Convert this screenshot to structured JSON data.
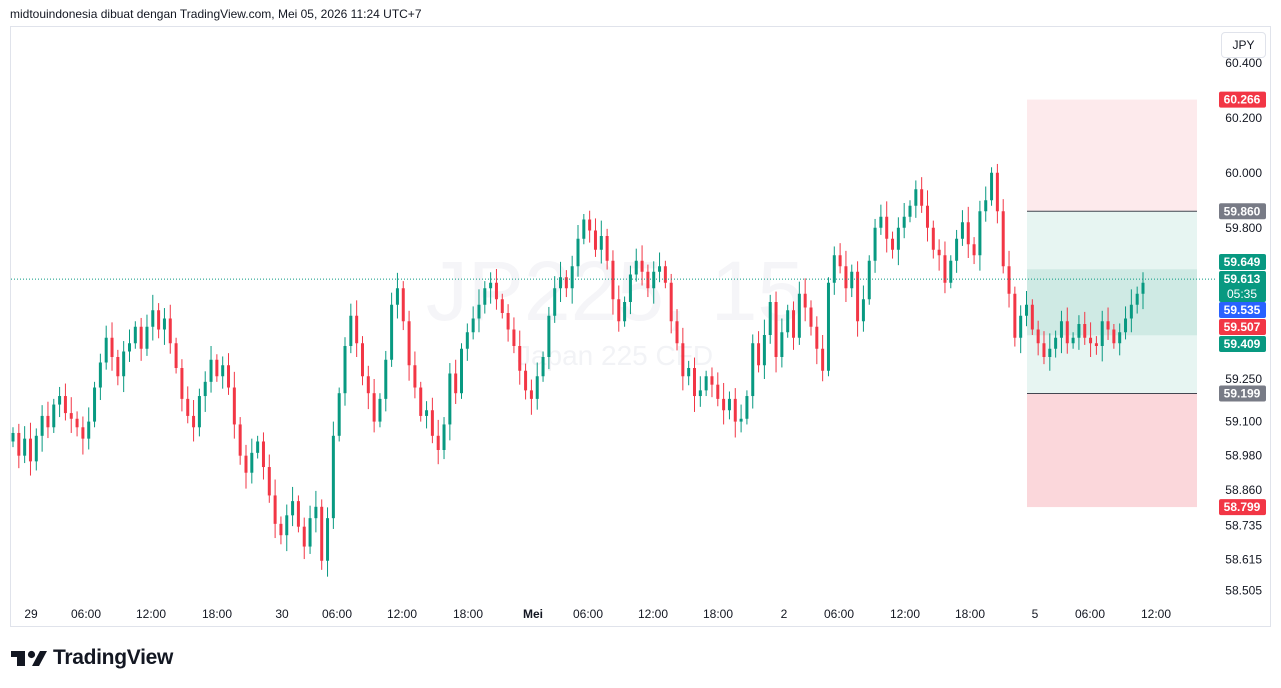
{
  "header": {
    "text": "midtouindonesia dibuat dengan TradingView.com, Mei 05, 2026 11:24 UTC+7"
  },
  "watermark": {
    "symbol": "JP225, 15",
    "name": "Japan 225 CFD"
  },
  "currency": "JPY",
  "brand": {
    "name": "TradingView",
    "icon": "tradingview-logo-icon"
  },
  "colors": {
    "up": "#089981",
    "down": "#f23645",
    "last_price": "#2962ff",
    "profit_zone": "#e6f4f1",
    "loss_zone": "#fde8ea"
  },
  "chart_data": {
    "type": "candlestick",
    "timeframe": "15",
    "x_ticks": [
      "29",
      "06:00",
      "12:00",
      "18:00",
      "30",
      "06:00",
      "12:00",
      "18:00",
      "Mei",
      "06:00",
      "12:00",
      "18:00",
      "2",
      "06:00",
      "12:00",
      "18:00",
      "5",
      "06:00",
      "12:00"
    ],
    "y_ticks": [
      "60.400",
      "60.200",
      "60.000",
      "59.800",
      "59.250",
      "59.100",
      "58.980",
      "58.860",
      "58.735",
      "58.615",
      "58.505"
    ],
    "ylim": [
      58.46,
      60.43
    ],
    "current_price": 59.613,
    "countdown": "05:35",
    "price_labels": [
      {
        "value": "60.266",
        "kind": "stop-loss"
      },
      {
        "value": "59.860",
        "kind": "target"
      },
      {
        "value": "59.649",
        "kind": "high"
      },
      {
        "value": "59.535",
        "kind": "bid"
      },
      {
        "value": "59.507",
        "kind": "low"
      },
      {
        "value": "59.409",
        "kind": "entry"
      },
      {
        "value": "59.199",
        "kind": "target"
      },
      {
        "value": "58.799",
        "kind": "stop-loss"
      }
    ],
    "series": [
      {
        "close": [
          59.06,
          58.98,
          59.04,
          58.96,
          59.05,
          59.12,
          59.08,
          59.16,
          59.19,
          59.13,
          59.11,
          59.08,
          59.04,
          59.1,
          59.22,
          59.31,
          59.4,
          59.33,
          59.26,
          59.35,
          59.38,
          59.44,
          59.36,
          59.44,
          59.5,
          59.43,
          59.47,
          59.38,
          59.29,
          59.18,
          59.12,
          59.08,
          59.19,
          59.24,
          59.32,
          59.26,
          59.3,
          59.22,
          59.09,
          58.98,
          58.92,
          58.99,
          59.03,
          58.94,
          58.84,
          58.74,
          58.7,
          58.77,
          58.82,
          58.73,
          58.66,
          58.76,
          58.8,
          58.61,
          58.76,
          59.05,
          59.2,
          59.37,
          59.48,
          59.38,
          59.26,
          59.2,
          59.1,
          59.18,
          59.32,
          59.52,
          59.58,
          59.46,
          59.3,
          59.22,
          59.12,
          59.14,
          59.05,
          59.0,
          59.09,
          59.27,
          59.2,
          59.36,
          59.42,
          59.47,
          59.52,
          59.58,
          59.6,
          59.54,
          59.49,
          59.43,
          59.37,
          59.28,
          59.21,
          59.18,
          59.26,
          59.33,
          59.48,
          59.58,
          59.62,
          59.58,
          59.66,
          59.76,
          59.83,
          59.79,
          59.72,
          59.77,
          59.68,
          59.54,
          59.46,
          59.53,
          59.63,
          59.68,
          59.64,
          59.58,
          59.64,
          59.66,
          59.6,
          59.46,
          59.38,
          59.26,
          59.29,
          59.19,
          59.21,
          59.26,
          59.23,
          59.18,
          59.14,
          59.18,
          59.1,
          59.11,
          59.19,
          59.38,
          59.3,
          59.41,
          59.53,
          59.33,
          59.42,
          59.5,
          59.4,
          59.56,
          59.51,
          59.44,
          59.36,
          59.28,
          59.6,
          59.7,
          59.66,
          59.58,
          59.64,
          59.46,
          59.54,
          59.68,
          59.8,
          59.84,
          59.76,
          59.72,
          59.8,
          59.84,
          59.88,
          59.94,
          59.88,
          59.8,
          59.72,
          59.7,
          59.6,
          59.68,
          59.76,
          59.82,
          59.74,
          59.7,
          59.86,
          59.9,
          60.0,
          59.86,
          59.66,
          59.56,
          59.4,
          59.48,
          59.52,
          59.43,
          59.38,
          59.33,
          59.36,
          59.4,
          59.46,
          59.38,
          59.4,
          59.45,
          59.4,
          59.38,
          59.37,
          59.46,
          59.43,
          59.38,
          59.42,
          59.47,
          59.52,
          59.56,
          59.6
        ]
      }
    ],
    "position_tool": {
      "entry_zone": [
        59.409,
        59.649
      ],
      "profit_zone": [
        59.199,
        59.86
      ],
      "loss_zones": [
        [
          59.86,
          60.266
        ],
        [
          58.799,
          59.199
        ]
      ]
    }
  }
}
